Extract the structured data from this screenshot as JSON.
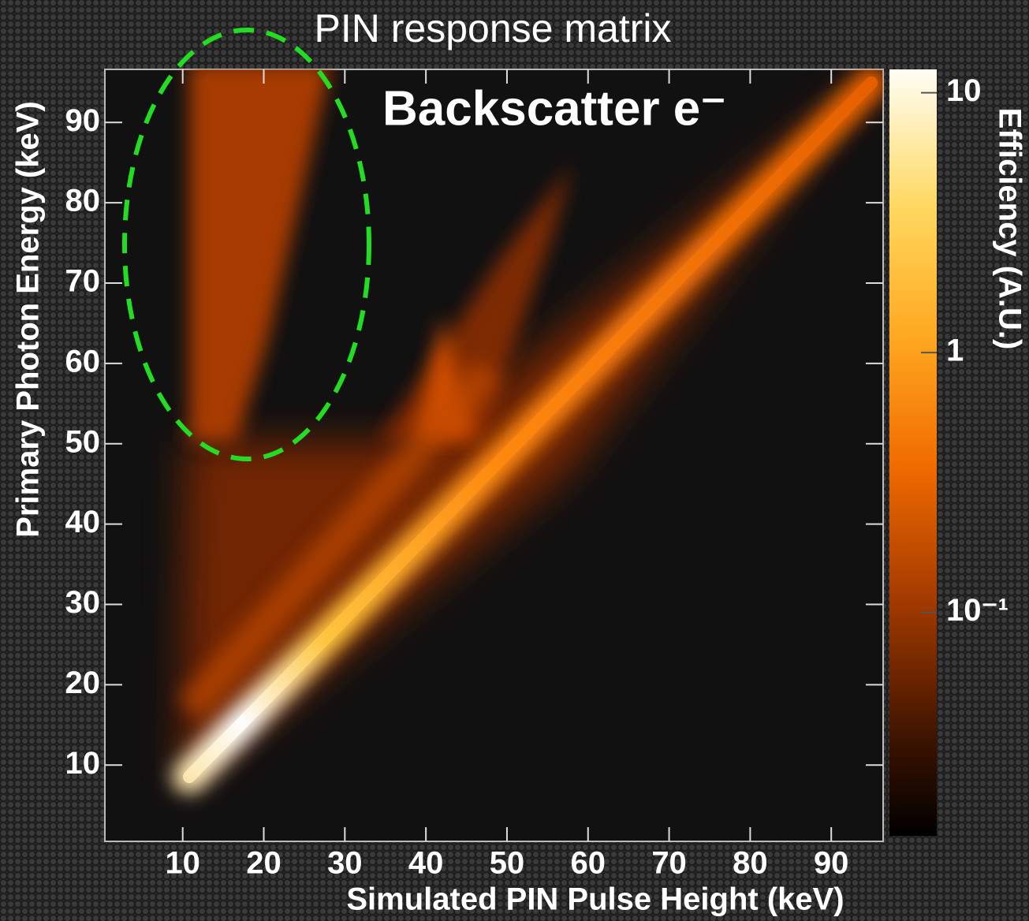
{
  "chart_data": {
    "type": "heatmap",
    "title": "PIN response matrix",
    "annotation": "Backscatter e⁻",
    "x_label": "Simulated PIN Pulse Height (keV)",
    "y_label": "Primary Photon Energy (keV)",
    "colorbar_label": "Efficiency (A.U.)",
    "xlim": [
      0.4,
      96.4
    ],
    "xticks": [
      10,
      20,
      30,
      40,
      50,
      60,
      70,
      80,
      90
    ],
    "ylim": [
      0.5,
      96.6
    ],
    "yticks": [
      10,
      20,
      30,
      40,
      50,
      60,
      70,
      80,
      90
    ],
    "clim": [
      0.0138,
      12.3
    ],
    "color_log": true,
    "cticks": [
      {
        "value": 0.1,
        "label": "10⁻¹"
      },
      {
        "value": 1,
        "label": "1"
      },
      {
        "value": 10,
        "label": "10"
      }
    ],
    "annotation_color": "#22dd22"
  }
}
